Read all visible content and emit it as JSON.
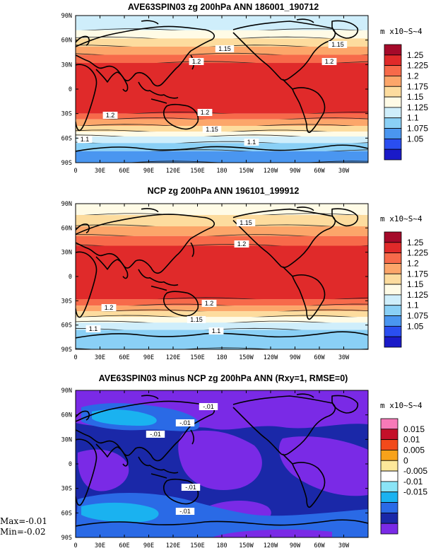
{
  "chart_data": [
    {
      "type": "heatmap",
      "title": "AVE63SPIN03 zg 200hPa ANN 186001_190712",
      "units": "m x10~S~4",
      "x_ticks": [
        "0",
        "30E",
        "60E",
        "90E",
        "120E",
        "150E",
        "180",
        "150W",
        "120W",
        "90W",
        "60W",
        "30W"
      ],
      "y_ticks": [
        "90N",
        "60N",
        "30N",
        "0",
        "30S",
        "60S",
        "90S"
      ],
      "levels": [
        "1.25",
        "1.225",
        "1.2",
        "1.175",
        "1.15",
        "1.125",
        "1.1",
        "1.075",
        "1.05"
      ],
      "colors": [
        "#a50a2a",
        "#e02a2a",
        "#f76a4a",
        "#fca66a",
        "#fddc9e",
        "#fffbe6",
        "#cfeefb",
        "#8ad0f6",
        "#4a96f0",
        "#2a4ef0",
        "#1a1ac8"
      ],
      "contour_labels": [
        "1.15",
        "1.15",
        "1.2",
        "1.2",
        "1.2",
        "1.2",
        "1.15",
        "1.1",
        "1.1"
      ],
      "bands": [
        {
          "lat": [
            90,
            72
          ],
          "value": 1.1125
        },
        {
          "lat": [
            72,
            62
          ],
          "value": 1.1375
        },
        {
          "lat": [
            62,
            52
          ],
          "value": 1.1625
        },
        {
          "lat": [
            52,
            42
          ],
          "value": 1.1875
        },
        {
          "lat": [
            42,
            32
          ],
          "value": 1.2125
        },
        {
          "lat": [
            32,
            -30
          ],
          "value": 1.2375
        },
        {
          "lat": [
            -30,
            -37
          ],
          "value": 1.2125
        },
        {
          "lat": [
            -37,
            -45
          ],
          "value": 1.1875
        },
        {
          "lat": [
            -45,
            -52
          ],
          "value": 1.1625
        },
        {
          "lat": [
            -52,
            -58
          ],
          "value": 1.1375
        },
        {
          "lat": [
            -58,
            -66
          ],
          "value": 1.1125
        },
        {
          "lat": [
            -66,
            -76
          ],
          "value": 1.0875
        },
        {
          "lat": [
            -76,
            -90
          ],
          "value": 1.0625
        }
      ]
    },
    {
      "type": "heatmap",
      "title": "NCP zg 200hPa ANN 196101_199912",
      "units": "m x10~S~4",
      "x_ticks": [
        "0",
        "30E",
        "60E",
        "90E",
        "120E",
        "150E",
        "180",
        "150W",
        "120W",
        "90W",
        "60W",
        "30W"
      ],
      "y_ticks": [
        "90N",
        "60N",
        "30N",
        "0",
        "30S",
        "60S",
        "90S"
      ],
      "levels": [
        "1.25",
        "1.225",
        "1.2",
        "1.175",
        "1.15",
        "1.125",
        "1.1",
        "1.075",
        "1.05"
      ],
      "colors": [
        "#a50a2a",
        "#e02a2a",
        "#f76a4a",
        "#fca66a",
        "#fddc9e",
        "#fffbe6",
        "#cfeefb",
        "#8ad0f6",
        "#4a96f0",
        "#2a4ef0",
        "#1a1ac8"
      ],
      "contour_labels": [
        "1.15",
        "1.2",
        "1.2",
        "1.2",
        "1.15",
        "1.1",
        "1.1"
      ],
      "bands": [
        {
          "lat": [
            90,
            76
          ],
          "value": 1.1375
        },
        {
          "lat": [
            76,
            62
          ],
          "value": 1.1625
        },
        {
          "lat": [
            62,
            50
          ],
          "value": 1.1875
        },
        {
          "lat": [
            50,
            38
          ],
          "value": 1.2125
        },
        {
          "lat": [
            38,
            -28
          ],
          "value": 1.2375
        },
        {
          "lat": [
            -28,
            -36
          ],
          "value": 1.2125
        },
        {
          "lat": [
            -36,
            -43
          ],
          "value": 1.1875
        },
        {
          "lat": [
            -43,
            -50
          ],
          "value": 1.1625
        },
        {
          "lat": [
            -50,
            -57
          ],
          "value": 1.1375
        },
        {
          "lat": [
            -57,
            -66
          ],
          "value": 1.1125
        },
        {
          "lat": [
            -66,
            -90
          ],
          "value": 1.0875
        }
      ]
    },
    {
      "type": "heatmap",
      "title": "AVE63SPIN03 minus NCP zg 200hPa ANN (Rxy=1, RMSE=0)",
      "units": "m x10~S~4",
      "x_ticks": [
        "0",
        "30E",
        "60E",
        "90E",
        "120E",
        "150E",
        "180",
        "150W",
        "120W",
        "90W",
        "60W",
        "30W"
      ],
      "y_ticks": [
        "90N",
        "60N",
        "30N",
        "0",
        "30S",
        "60S",
        "90S"
      ],
      "levels": [
        "0.015",
        "0.01",
        "0.005",
        "0",
        "-0.005",
        "-0.01",
        "-0.015"
      ],
      "colors": [
        "#f77ab8",
        "#c4102a",
        "#f24a1a",
        "#f7a21a",
        "#fde89a",
        "#ffffff",
        "#8ae4f6",
        "#1ab2f0",
        "#2a6ae6",
        "#1a28a8",
        "#7a2ae6"
      ],
      "contour_labels": [
        "-.01",
        "-.01",
        "-.01",
        "-.01",
        "-.01"
      ],
      "stats": {
        "max": "Max=-0.01",
        "min": "Min=-0.02"
      }
    }
  ]
}
